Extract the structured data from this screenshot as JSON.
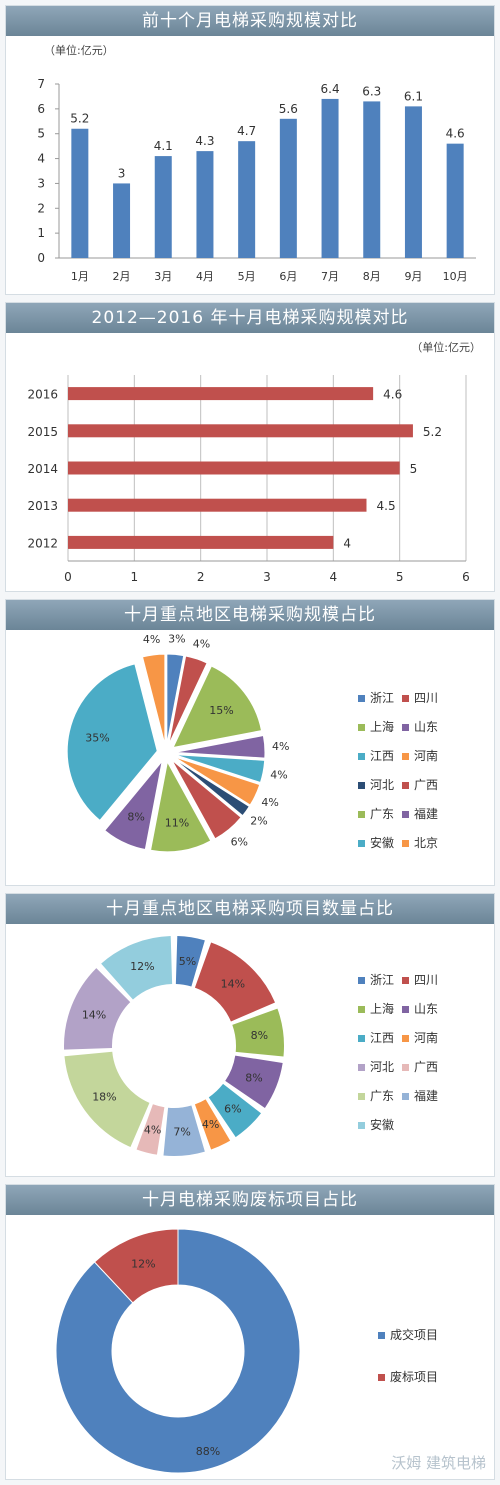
{
  "charts": [
    {
      "title": "前十个月电梯采购规模对比",
      "chart_data": {
        "type": "bar",
        "title": "前十个月电梯采购规模对比",
        "unit_label": "（单位:亿元）",
        "categories": [
          "1月",
          "2月",
          "3月",
          "4月",
          "5月",
          "6月",
          "7月",
          "8月",
          "9月",
          "10月"
        ],
        "values": [
          5.2,
          3,
          4.1,
          4.3,
          4.7,
          5.6,
          6.4,
          6.3,
          6.1,
          4.6
        ],
        "value_labels": [
          "5.2",
          "3",
          "4.1",
          "4.3",
          "4.7",
          "5.6",
          "6.4",
          "6.3",
          "6.1",
          "4.6"
        ],
        "ylim": [
          0,
          7
        ],
        "yticks": [
          "0",
          "1",
          "2",
          "3",
          "4",
          "5",
          "6",
          "7"
        ],
        "color": "#4f81bd",
        "grid": false
      }
    },
    {
      "title": "2012—2016 年十月电梯采购规模对比",
      "chart_data": {
        "type": "bar",
        "orientation": "horizontal",
        "title": "2012—2016 年十月电梯采购规模对比",
        "unit_label": "（单位:亿元）",
        "categories": [
          "2016",
          "2015",
          "2014",
          "2013",
          "2012"
        ],
        "values": [
          4.6,
          5.2,
          5,
          4.5,
          4
        ],
        "value_labels": [
          "4.6",
          "5.2",
          "5",
          "4.5",
          "4"
        ],
        "xlim": [
          0,
          6
        ],
        "xticks": [
          "0",
          "1",
          "2",
          "3",
          "4",
          "5",
          "6"
        ],
        "color": "#c0504d",
        "grid": true
      }
    },
    {
      "title": "十月重点地区电梯采购规模占比",
      "chart_data": {
        "type": "pie",
        "title": "十月重点地区电梯采购规模占比",
        "labels": [
          "浙江",
          "四川",
          "上海",
          "山东",
          "江西",
          "河南",
          "河北",
          "广西",
          "广东",
          "福建",
          "安徽",
          "北京"
        ],
        "values": [
          3,
          4,
          15,
          4,
          4,
          4,
          2,
          6,
          11,
          8,
          35,
          4
        ],
        "value_labels": [
          "3%",
          "4%",
          "15%",
          "4%",
          "4%",
          "4%",
          "2%",
          "6%",
          "11%",
          "8%",
          "35%",
          "4%"
        ],
        "colors": [
          "#4f81bd",
          "#c0504d",
          "#9bbb59",
          "#8064a2",
          "#4bacc6",
          "#f79646",
          "#2c4d75",
          "#c0504d",
          "#9bbb59",
          "#8064a2",
          "#4bacc6",
          "#f79646"
        ],
        "legend_position": "right"
      }
    },
    {
      "title": "十月重点地区电梯采购项目数量占比",
      "chart_data": {
        "type": "donut",
        "title": "十月重点地区电梯采购项目数量占比",
        "labels": [
          "浙江",
          "四川",
          "上海",
          "山东",
          "江西",
          "河南",
          "河北",
          "广西",
          "广东",
          "福建",
          "安徽"
        ],
        "values": [
          5,
          14,
          8,
          8,
          6,
          4,
          14,
          4,
          18,
          7,
          12
        ],
        "value_labels": [
          "5%",
          "14%",
          "8%",
          "8%",
          "6%",
          "4%",
          "14%",
          "4%",
          "18%",
          "7%",
          "12%"
        ],
        "order_clockwise": [
          "浙江",
          "四川",
          "上海",
          "山东",
          "江西",
          "河南",
          "福建",
          "广西",
          "广东",
          "河北",
          "安徽"
        ],
        "colors": [
          "#4f81bd",
          "#c0504d",
          "#9bbb59",
          "#8064a2",
          "#4bacc6",
          "#f79646",
          "#b2a2c7",
          "#e6b9b8",
          "#c3d69b",
          "#95b3d7",
          "#93cddd"
        ],
        "legend_position": "right"
      }
    },
    {
      "title": "十月电梯采购废标项目占比",
      "chart_data": {
        "type": "donut",
        "title": "十月电梯采购废标项目占比",
        "labels": [
          "成交项目",
          "废标项目"
        ],
        "values": [
          88,
          12
        ],
        "value_labels": [
          "88%",
          "12%"
        ],
        "colors": [
          "#4f81bd",
          "#c0504d"
        ],
        "legend_position": "right"
      }
    }
  ],
  "watermark": "沃姆 建筑电梯"
}
